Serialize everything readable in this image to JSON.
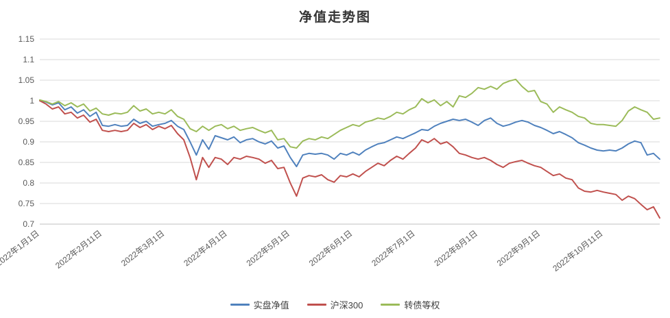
{
  "chart_data": {
    "type": "line",
    "title": "净值走势图",
    "xlabel": "",
    "ylabel": "",
    "ylim": [
      0.7,
      1.15
    ],
    "y_step": 0.05,
    "grid": "horizontal",
    "legend_position": "bottom",
    "y_tick_labels": [
      "0.7",
      "0.75",
      "0.8",
      "0.85",
      "0.9",
      "0.95",
      "1",
      "1.05",
      "1.1",
      "1.15"
    ],
    "x_tick_labels": [
      "2022年1月1日",
      "2022年2月11日",
      "2022年3月1日",
      "2022年4月1日",
      "2022年5月1日",
      "2022年6月1日",
      "2022年7月1日",
      "2022年8月1日",
      "2022年9月1日",
      "2022年10月11日"
    ],
    "x_tick_indices": [
      0,
      10,
      20,
      30,
      40,
      50,
      60,
      70,
      80,
      90
    ],
    "series": [
      {
        "name": "实盘净值",
        "color": "#4f81bd",
        "values": [
          1.0,
          0.997,
          0.99,
          0.995,
          0.978,
          0.985,
          0.97,
          0.978,
          0.962,
          0.972,
          0.94,
          0.938,
          0.942,
          0.938,
          0.94,
          0.955,
          0.945,
          0.95,
          0.938,
          0.942,
          0.945,
          0.952,
          0.938,
          0.93,
          0.9,
          0.868,
          0.905,
          0.882,
          0.915,
          0.91,
          0.905,
          0.912,
          0.898,
          0.905,
          0.908,
          0.9,
          0.895,
          0.902,
          0.885,
          0.89,
          0.862,
          0.84,
          0.868,
          0.872,
          0.87,
          0.872,
          0.868,
          0.858,
          0.872,
          0.868,
          0.875,
          0.868,
          0.88,
          0.888,
          0.895,
          0.898,
          0.905,
          0.912,
          0.908,
          0.915,
          0.922,
          0.93,
          0.928,
          0.938,
          0.945,
          0.95,
          0.955,
          0.952,
          0.955,
          0.948,
          0.94,
          0.952,
          0.958,
          0.945,
          0.938,
          0.942,
          0.948,
          0.952,
          0.948,
          0.94,
          0.935,
          0.928,
          0.92,
          0.925,
          0.918,
          0.91,
          0.898,
          0.892,
          0.885,
          0.88,
          0.878,
          0.88,
          0.878,
          0.885,
          0.895,
          0.902,
          0.898,
          0.868,
          0.872,
          0.858
        ]
      },
      {
        "name": "沪深300",
        "color": "#c0504d",
        "values": [
          1.0,
          0.992,
          0.98,
          0.985,
          0.968,
          0.972,
          0.958,
          0.965,
          0.948,
          0.955,
          0.928,
          0.925,
          0.928,
          0.925,
          0.928,
          0.945,
          0.935,
          0.942,
          0.93,
          0.938,
          0.932,
          0.94,
          0.92,
          0.905,
          0.862,
          0.808,
          0.862,
          0.838,
          0.862,
          0.858,
          0.845,
          0.862,
          0.858,
          0.865,
          0.862,
          0.858,
          0.848,
          0.855,
          0.835,
          0.838,
          0.8,
          0.768,
          0.812,
          0.818,
          0.815,
          0.82,
          0.808,
          0.802,
          0.818,
          0.815,
          0.822,
          0.815,
          0.828,
          0.838,
          0.848,
          0.842,
          0.855,
          0.865,
          0.858,
          0.872,
          0.885,
          0.905,
          0.898,
          0.908,
          0.895,
          0.9,
          0.888,
          0.872,
          0.868,
          0.862,
          0.858,
          0.862,
          0.855,
          0.845,
          0.838,
          0.848,
          0.852,
          0.855,
          0.848,
          0.842,
          0.838,
          0.828,
          0.818,
          0.822,
          0.812,
          0.808,
          0.788,
          0.78,
          0.778,
          0.782,
          0.778,
          0.775,
          0.772,
          0.758,
          0.768,
          0.762,
          0.748,
          0.735,
          0.742,
          0.715
        ]
      },
      {
        "name": "转债等权",
        "color": "#9bbb59",
        "values": [
          1.002,
          0.998,
          0.992,
          0.998,
          0.988,
          0.995,
          0.985,
          0.992,
          0.975,
          0.982,
          0.968,
          0.965,
          0.97,
          0.968,
          0.972,
          0.988,
          0.975,
          0.98,
          0.968,
          0.972,
          0.968,
          0.978,
          0.962,
          0.955,
          0.932,
          0.925,
          0.938,
          0.928,
          0.938,
          0.942,
          0.932,
          0.938,
          0.928,
          0.932,
          0.935,
          0.928,
          0.922,
          0.928,
          0.905,
          0.908,
          0.888,
          0.885,
          0.902,
          0.908,
          0.905,
          0.912,
          0.908,
          0.918,
          0.928,
          0.935,
          0.942,
          0.938,
          0.948,
          0.952,
          0.958,
          0.955,
          0.962,
          0.972,
          0.968,
          0.978,
          0.985,
          1.005,
          0.995,
          1.002,
          0.988,
          0.998,
          0.985,
          1.012,
          1.008,
          1.018,
          1.032,
          1.028,
          1.035,
          1.028,
          1.042,
          1.048,
          1.052,
          1.035,
          1.022,
          1.025,
          0.998,
          0.992,
          0.972,
          0.985,
          0.978,
          0.972,
          0.962,
          0.958,
          0.945,
          0.942,
          0.942,
          0.94,
          0.938,
          0.952,
          0.975,
          0.985,
          0.978,
          0.972,
          0.955,
          0.958
        ]
      }
    ]
  }
}
